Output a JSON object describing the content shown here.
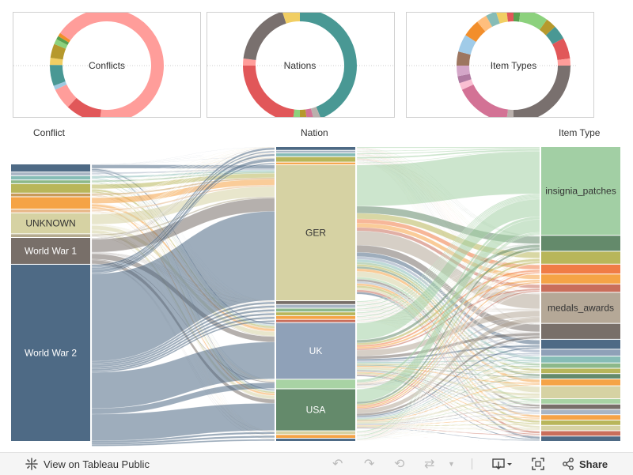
{
  "chart_data": [
    {
      "type": "pie",
      "variant": "donut",
      "title": "",
      "center_label": "Conflicts",
      "slices": [
        {
          "label": "World War 2",
          "value": 52.0,
          "color": "#ff9d9a"
        },
        {
          "label": "World War 1",
          "value": 10.0,
          "color": "#e15759"
        },
        {
          "label": "UNKNOWN",
          "value": 6.0,
          "color": "#ff9d9a"
        },
        {
          "label": "",
          "value": 1.2,
          "color": "#9ecae1"
        },
        {
          "label": "",
          "value": 6.0,
          "color": "#499894"
        },
        {
          "label": "",
          "value": 2.0,
          "color": "#f1ce63"
        },
        {
          "label": "",
          "value": 4.0,
          "color": "#b6992d"
        },
        {
          "label": "",
          "value": 1.5,
          "color": "#8cd17d"
        },
        {
          "label": "",
          "value": 1.0,
          "color": "#59a14f"
        },
        {
          "label": "",
          "value": 1.0,
          "color": "#f28e2b"
        },
        {
          "label": "",
          "value": 15.3,
          "color": "#ff9d9a"
        }
      ]
    },
    {
      "type": "pie",
      "variant": "donut",
      "title": "",
      "center_label": "Nations",
      "slices": [
        {
          "label": "GER",
          "value": 44.0,
          "color": "#499894"
        },
        {
          "label": "",
          "value": 2.0,
          "color": "#bab0ac"
        },
        {
          "label": "",
          "value": 2.0,
          "color": "#d37295"
        },
        {
          "label": "",
          "value": 2.0,
          "color": "#b6992d"
        },
        {
          "label": "",
          "value": 2.0,
          "color": "#8cd17d"
        },
        {
          "label": "",
          "value": 23.0,
          "color": "#e15759"
        },
        {
          "label": "",
          "value": 2.0,
          "color": "#ff9d9a"
        },
        {
          "label": "",
          "value": 18.0,
          "color": "#79706e"
        },
        {
          "label": "",
          "value": 5.0,
          "color": "#f1ce63"
        }
      ]
    },
    {
      "type": "pie",
      "variant": "donut",
      "title": "",
      "center_label": "Item Types",
      "slices": [
        {
          "label": "insignia_patches",
          "value": 2.0,
          "color": "#59a14f"
        },
        {
          "label": "",
          "value": 8.0,
          "color": "#8cd17d"
        },
        {
          "label": "",
          "value": 3.0,
          "color": "#b6992d"
        },
        {
          "label": "",
          "value": 4.0,
          "color": "#499894"
        },
        {
          "label": "",
          "value": 6.0,
          "color": "#e15759"
        },
        {
          "label": "",
          "value": 2.0,
          "color": "#ff9d9a"
        },
        {
          "label": "",
          "value": 25.0,
          "color": "#79706e"
        },
        {
          "label": "",
          "value": 2.0,
          "color": "#bab0ac"
        },
        {
          "label": "",
          "value": 16.0,
          "color": "#d37295"
        },
        {
          "label": "",
          "value": 2.0,
          "color": "#fabfd2"
        },
        {
          "label": "",
          "value": 2.0,
          "color": "#b07aa1"
        },
        {
          "label": "",
          "value": 3.0,
          "color": "#d4a6c8"
        },
        {
          "label": "",
          "value": 4.0,
          "color": "#9d7660"
        },
        {
          "label": "",
          "value": 5.0,
          "color": "#a0cbe8"
        },
        {
          "label": "",
          "value": 5.0,
          "color": "#f28e2b"
        },
        {
          "label": "",
          "value": 3.0,
          "color": "#ffbe7d"
        },
        {
          "label": "",
          "value": 3.0,
          "color": "#86bcb6"
        },
        {
          "label": "",
          "value": 3.0,
          "color": "#f1ce63"
        },
        {
          "label": "",
          "value": 2.0,
          "color": "#e15759"
        }
      ]
    },
    {
      "type": "sankey",
      "columns": [
        {
          "header": "Conflict",
          "nodes": [
            {
              "label": "",
              "value": 2.5,
              "color": "#4e6a85"
            },
            {
              "label": "",
              "value": 1.0,
              "color": "#a8b5c4"
            },
            {
              "label": "",
              "value": 1.2,
              "color": "#86bcb6"
            },
            {
              "label": "",
              "value": 1.0,
              "color": "#8cb88a"
            },
            {
              "label": "",
              "value": 3.0,
              "color": "#b8b65a"
            },
            {
              "label": "",
              "value": 1.0,
              "color": "#c89a5a"
            },
            {
              "label": "",
              "value": 4.0,
              "color": "#f5a346"
            },
            {
              "label": "",
              "value": 1.0,
              "color": "#e8b889"
            },
            {
              "label": "UNKNOWN",
              "value": 7.0,
              "color": "#d6d2a3"
            },
            {
              "label": "",
              "value": 1.0,
              "color": "#b5ab8f"
            },
            {
              "label": "World War 1",
              "value": 9.0,
              "color": "#786f69"
            },
            {
              "label": "World War 2",
              "value": 61.0,
              "color": "#4e6a85"
            }
          ]
        },
        {
          "header": "Nation",
          "nodes": [
            {
              "label": "",
              "value": 1.0,
              "color": "#4e6a85"
            },
            {
              "label": "",
              "value": 0.6,
              "color": "#a8b5c4"
            },
            {
              "label": "",
              "value": 1.0,
              "color": "#86bcb6"
            },
            {
              "label": "",
              "value": 1.6,
              "color": "#b8b65a"
            },
            {
              "label": "",
              "value": 0.6,
              "color": "#f5a346"
            },
            {
              "label": "GER",
              "value": 46.0,
              "color": "#d6d2a3"
            },
            {
              "label": "",
              "value": 1.0,
              "color": "#786f69"
            },
            {
              "label": "",
              "value": 1.0,
              "color": "#a8b5c4"
            },
            {
              "label": "",
              "value": 1.0,
              "color": "#8cb88a"
            },
            {
              "label": "",
              "value": 1.0,
              "color": "#b8b65a"
            },
            {
              "label": "",
              "value": 1.0,
              "color": "#f5a346"
            },
            {
              "label": "",
              "value": 0.8,
              "color": "#c96e5b"
            },
            {
              "label": "UK",
              "value": 19.0,
              "color": "#8fa1b8"
            },
            {
              "label": "",
              "value": 3.0,
              "color": "#a8d3a4"
            },
            {
              "label": "USA",
              "value": 14.0,
              "color": "#648a6b"
            },
            {
              "label": "",
              "value": 1.0,
              "color": "#d6d2a3"
            },
            {
              "label": "",
              "value": 1.0,
              "color": "#f5a346"
            },
            {
              "label": "",
              "value": 0.8,
              "color": "#4e6a85"
            }
          ]
        },
        {
          "header": "Item Type",
          "nodes": [
            {
              "label": "insignia_patches",
              "value": 29.0,
              "color": "#a2cfa4"
            },
            {
              "label": "",
              "value": 5.0,
              "color": "#648a6b"
            },
            {
              "label": "",
              "value": 4.0,
              "color": "#b8b65a"
            },
            {
              "label": "",
              "value": 3.0,
              "color": "#f07c46"
            },
            {
              "label": "",
              "value": 3.0,
              "color": "#f5a346"
            },
            {
              "label": "",
              "value": 2.5,
              "color": "#c96e5b"
            },
            {
              "label": "medals_awards",
              "value": 10.0,
              "color": "#b5a897"
            },
            {
              "label": "",
              "value": 5.0,
              "color": "#786f69"
            },
            {
              "label": "",
              "value": 3.0,
              "color": "#4e6a85"
            },
            {
              "label": "",
              "value": 2.0,
              "color": "#8fa1b8"
            },
            {
              "label": "",
              "value": 2.0,
              "color": "#86bcb6"
            },
            {
              "label": "",
              "value": 1.5,
              "color": "#8cb88a"
            },
            {
              "label": "",
              "value": 1.5,
              "color": "#b8b65a"
            },
            {
              "label": "",
              "value": 1.5,
              "color": "#648a6b"
            },
            {
              "label": "",
              "value": 2.0,
              "color": "#f5a346"
            },
            {
              "label": "",
              "value": 4.0,
              "color": "#d6d2a3"
            },
            {
              "label": "",
              "value": 1.5,
              "color": "#a8d3a4"
            },
            {
              "label": "",
              "value": 1.5,
              "color": "#786f69"
            },
            {
              "label": "",
              "value": 1.5,
              "color": "#a8b5c4"
            },
            {
              "label": "",
              "value": 1.5,
              "color": "#f5a346"
            },
            {
              "label": "",
              "value": 1.5,
              "color": "#b8b65a"
            },
            {
              "label": "",
              "value": 1.5,
              "color": "#d6d2a3"
            },
            {
              "label": "",
              "value": 1.5,
              "color": "#c96e5b"
            },
            {
              "label": "",
              "value": 1.5,
              "color": "#4e6a85"
            }
          ]
        }
      ]
    }
  ],
  "toolbar": {
    "view_label": "View on Tableau Public",
    "share_label": "Share"
  }
}
